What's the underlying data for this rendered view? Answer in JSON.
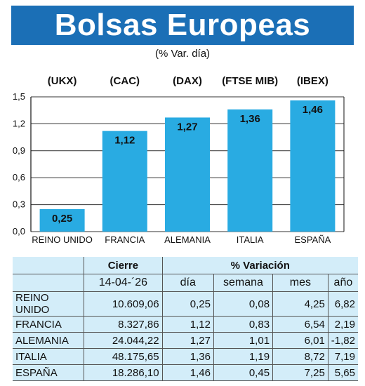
{
  "title": "Bolsas Europeas",
  "subtitle": "(% Var. día)",
  "chart_data": {
    "type": "bar",
    "categories": [
      "REINO UNIDO",
      "FRANCIA",
      "ALEMANIA",
      "ITALIA",
      "ESPAÑA"
    ],
    "tickers": [
      "(UKX)",
      "(CAC)",
      "(DAX)",
      "(FTSE MIB)",
      "(IBEX)"
    ],
    "values": [
      0.25,
      1.12,
      1.27,
      1.36,
      1.46
    ],
    "value_labels": [
      "0,25",
      "1,12",
      "1,27",
      "1,36",
      "1,46"
    ],
    "ylim": [
      0,
      1.5
    ],
    "yticks": [
      0,
      0.3,
      0.6,
      0.9,
      1.2,
      1.5
    ],
    "ytick_labels": [
      "0,0",
      "0,3",
      "0,6",
      "0,9",
      "1,2",
      "1,5"
    ],
    "grid": true,
    "bar_color": "#29abe2"
  },
  "table": {
    "header_cierre": "Cierre",
    "header_variacion": "% Variación",
    "date": "14-04-´26",
    "col_dia": "día",
    "col_semana": "semana",
    "col_mes": "mes",
    "col_ano": "año",
    "rows": [
      {
        "name": "REINO UNIDO",
        "cierre": "10.609,06",
        "dia": "0,25",
        "semana": "0,08",
        "mes": "4,25",
        "ano": "6,82"
      },
      {
        "name": "FRANCIA",
        "cierre": "8.327,86",
        "dia": "1,12",
        "semana": "0,83",
        "mes": "6,54",
        "ano": "2,19"
      },
      {
        "name": "ALEMANIA",
        "cierre": "24.044,22",
        "dia": "1,27",
        "semana": "1,01",
        "mes": "6,01",
        "ano": "-1,82"
      },
      {
        "name": "ITALIA",
        "cierre": "48.175,65",
        "dia": "1,36",
        "semana": "1,19",
        "mes": "8,72",
        "ano": "7,19"
      },
      {
        "name": "ESPAÑA",
        "cierre": "18.286,10",
        "dia": "1,46",
        "semana": "0,45",
        "mes": "7,25",
        "ano": "5,65"
      }
    ]
  }
}
